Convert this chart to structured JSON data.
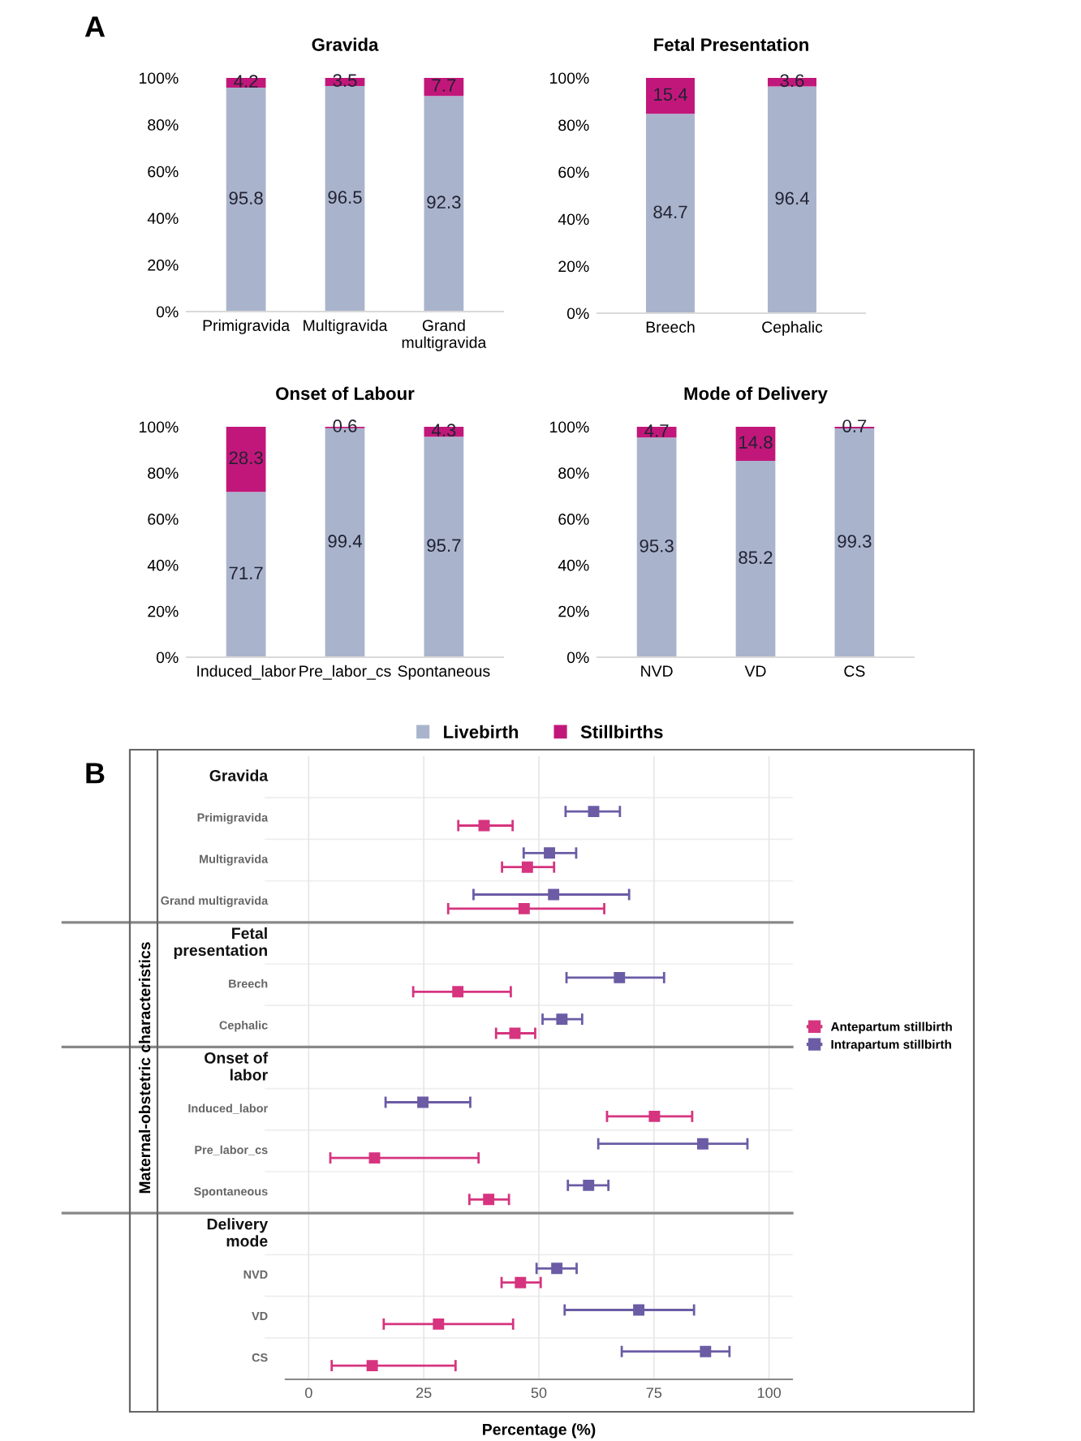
{
  "chart_data": [
    {
      "type": "bar",
      "stacked": true,
      "title": "Gravida",
      "annotations": [
        "A"
      ],
      "categories": [
        "Primigravida",
        "Multigravida",
        "Grand\nmultigravida"
      ],
      "series": [
        {
          "color": "#a9b4cc",
          "values": [
            95.8,
            96.5,
            92.3
          ]
        },
        {
          "color": "#c2177a",
          "values": [
            4.2,
            3.5,
            7.7
          ]
        }
      ],
      "ylim": [
        0,
        100
      ],
      "yticks": [
        {
          "value": 0,
          "label": "0%"
        },
        {
          "value": 20,
          "label": "20%"
        },
        {
          "value": 40,
          "label": "40%"
        },
        {
          "value": 60,
          "label": "60%"
        },
        {
          "value": 80,
          "label": "80%"
        },
        {
          "value": 100,
          "label": "100%"
        }
      ],
      "data_labels": true
    },
    {
      "type": "bar",
      "stacked": true,
      "title": "Fetal Presentation",
      "categories": [
        "Breech",
        "Cephalic"
      ],
      "series": [
        {
          "color": "#a9b4cc",
          "values": [
            84.7,
            96.4
          ]
        },
        {
          "color": "#c2177a",
          "values": [
            15.4,
            3.6
          ]
        }
      ],
      "ylim": [
        0,
        100
      ],
      "yticks": [
        {
          "value": 0,
          "label": "0%"
        },
        {
          "value": 20,
          "label": "20%"
        },
        {
          "value": 40,
          "label": "40%"
        },
        {
          "value": 60,
          "label": "60%"
        },
        {
          "value": 80,
          "label": "80%"
        },
        {
          "value": 100,
          "label": "100%"
        }
      ],
      "data_labels": true
    },
    {
      "type": "bar",
      "stacked": true,
      "title": "Onset of Labour",
      "categories": [
        "Induced_labor",
        "Pre_labor_cs",
        "Spontaneous"
      ],
      "series": [
        {
          "color": "#a9b4cc",
          "values": [
            71.7,
            99.4,
            95.7
          ]
        },
        {
          "color": "#c2177a",
          "values": [
            28.3,
            0.6,
            4.3
          ]
        }
      ],
      "ylim": [
        0,
        100
      ],
      "yticks": [
        {
          "value": 0,
          "label": "0%"
        },
        {
          "value": 20,
          "label": "20%"
        },
        {
          "value": 40,
          "label": "40%"
        },
        {
          "value": 60,
          "label": "60%"
        },
        {
          "value": 80,
          "label": "80%"
        },
        {
          "value": 100,
          "label": "100%"
        }
      ],
      "data_labels": true
    },
    {
      "type": "bar",
      "stacked": true,
      "title": "Mode of Delivery",
      "categories": [
        "NVD",
        "VD",
        "CS"
      ],
      "series": [
        {
          "name": "Livebirth",
          "color": "#a9b4cc",
          "values": [
            95.3,
            85.2,
            99.3
          ]
        },
        {
          "name": "Stillbirths",
          "color": "#c2177a",
          "values": [
            4.7,
            14.8,
            0.7
          ]
        }
      ],
      "ylim": [
        0,
        100
      ],
      "yticks": [
        {
          "value": 0,
          "label": "0%"
        },
        {
          "value": 20,
          "label": "20%"
        },
        {
          "value": 40,
          "label": "40%"
        },
        {
          "value": 60,
          "label": "60%"
        },
        {
          "value": 80,
          "label": "80%"
        },
        {
          "value": 100,
          "label": "100%"
        }
      ],
      "data_labels": true,
      "legend": "bottom"
    },
    {
      "type": "scatter",
      "orientation": "horizontal",
      "annotations": [
        "B"
      ],
      "xlabel": "Percentage (%)",
      "ylabel": "Maternal-obstetric characteristics",
      "categories": [
        "Gravida",
        "Primigravida",
        "Multigravida",
        "Grand multigravida",
        "Fetal\npresentation",
        "Breech",
        "Cephalic",
        "Onset of\nlabor",
        "Induced_labor",
        "Pre_labor_cs",
        "Spontaneous",
        "Delivery\nmode",
        "NVD",
        "VD",
        "CS"
      ],
      "series": [
        {
          "name": "Antepartum stillbirth",
          "color": "#d6347f",
          "values": [
            null,
            38.1,
            47.5,
            46.8,
            null,
            32.4,
            44.8,
            null,
            75.1,
            14.3,
            39.1,
            null,
            46.0,
            28.2,
            13.8
          ],
          "errors": [
            null,
            [
              32.5,
              44.3
            ],
            [
              42.0,
              53.3
            ],
            [
              30.3,
              64.2
            ],
            null,
            [
              22.7,
              43.9
            ],
            [
              40.7,
              49.2
            ],
            null,
            [
              64.8,
              83.3
            ],
            [
              4.7,
              36.9
            ],
            [
              34.9,
              43.5
            ],
            null,
            [
              41.9,
              50.4
            ],
            [
              16.3,
              44.4
            ],
            [
              5.0,
              31.9
            ]
          ]
        },
        {
          "name": "Intrapartum stillbirth",
          "color": "#6b5ca5",
          "values": [
            null,
            61.9,
            52.3,
            53.2,
            null,
            67.5,
            55.0,
            null,
            24.8,
            85.6,
            60.8,
            null,
            53.9,
            71.7,
            86.2
          ],
          "errors": [
            null,
            [
              55.8,
              67.6
            ],
            [
              46.7,
              58.1
            ],
            [
              35.8,
              69.6
            ],
            null,
            [
              56.0,
              77.2
            ],
            [
              50.8,
              59.4
            ],
            null,
            [
              16.7,
              35.1
            ],
            [
              62.9,
              95.3
            ],
            [
              56.3,
              65.1
            ],
            null,
            [
              49.5,
              58.2
            ],
            [
              55.6,
              83.7
            ],
            [
              68.0,
              91.4
            ]
          ]
        }
      ],
      "xlim": [
        -5,
        105
      ],
      "xticks": [
        0,
        25,
        50,
        75,
        100
      ],
      "grid": "x",
      "marker": "square",
      "legend": "right"
    }
  ]
}
